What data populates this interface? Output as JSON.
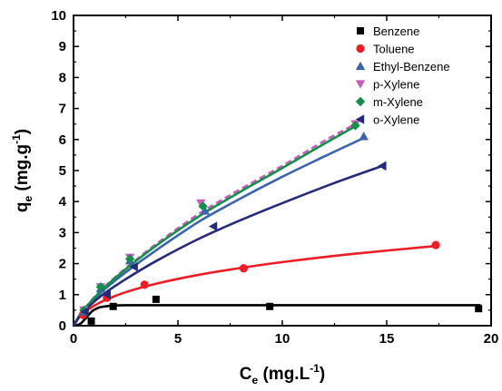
{
  "chart_data": {
    "type": "scatter",
    "title": "",
    "xlabel": {
      "main": "C",
      "sub": "e",
      "rest": " (mg.L",
      "sup": "-1",
      "close": ")"
    },
    "ylabel": {
      "main": "q",
      "sub": "e",
      "rest": " (mg.g",
      "sup": "-1",
      "close": ")"
    },
    "xlim": [
      0,
      20
    ],
    "ylim": [
      0,
      10
    ],
    "xticks": [
      "0",
      "5",
      "10",
      "15",
      "20"
    ],
    "yticks": [
      "0",
      "1",
      "2",
      "3",
      "4",
      "5",
      "6",
      "7",
      "8",
      "9",
      "10"
    ],
    "legend_position": "top-right",
    "grid": false,
    "series": [
      {
        "name": "Benzene",
        "color": "#000000",
        "marker": "square",
        "points": [
          [
            0.85,
            0.15
          ],
          [
            1.9,
            0.62
          ],
          [
            3.95,
            0.85
          ],
          [
            9.4,
            0.62
          ],
          [
            19.4,
            0.55
          ]
        ],
        "fit": [
          [
            0.0,
            0.0
          ],
          [
            0.3,
            0.05
          ],
          [
            0.6,
            0.25
          ],
          [
            0.9,
            0.47
          ],
          [
            1.2,
            0.58
          ],
          [
            1.5,
            0.62
          ],
          [
            1.9,
            0.65
          ],
          [
            2.5,
            0.66
          ],
          [
            4,
            0.66
          ],
          [
            10,
            0.66
          ],
          [
            19.5,
            0.66
          ]
        ],
        "fit_dashed": false
      },
      {
        "name": "Toluene",
        "color": "#ee1c24",
        "marker": "circle",
        "points": [
          [
            0.45,
            0.35
          ],
          [
            1.6,
            0.9
          ],
          [
            3.4,
            1.32
          ],
          [
            8.15,
            1.85
          ],
          [
            17.35,
            2.6
          ]
        ],
        "fit": [
          [
            0,
            0
          ],
          [
            0.25,
            0.25
          ],
          [
            0.5,
            0.42
          ],
          [
            1,
            0.65
          ],
          [
            1.5,
            0.82
          ],
          [
            2.5,
            1.08
          ],
          [
            4,
            1.36
          ],
          [
            6,
            1.64
          ],
          [
            8,
            1.86
          ],
          [
            10,
            2.05
          ],
          [
            12.5,
            2.25
          ],
          [
            15,
            2.42
          ],
          [
            17.4,
            2.57
          ]
        ],
        "fit_dashed": false
      },
      {
        "name": "Ethyl-Benzene",
        "color": "#3b64ad",
        "marker": "triangle-up",
        "points": [
          [
            0.5,
            0.45
          ],
          [
            1.3,
            1.2
          ],
          [
            2.7,
            2.1
          ],
          [
            6.3,
            3.7
          ],
          [
            13.9,
            6.1
          ]
        ],
        "fit": [
          [
            0,
            0
          ],
          [
            0.25,
            0.27
          ],
          [
            0.5,
            0.5
          ],
          [
            1,
            0.85
          ],
          [
            1.5,
            1.18
          ],
          [
            2.5,
            1.72
          ],
          [
            4,
            2.45
          ],
          [
            6,
            3.35
          ],
          [
            8,
            4.1
          ],
          [
            10,
            4.8
          ],
          [
            12,
            5.45
          ],
          [
            13.9,
            6.05
          ]
        ],
        "fit_dashed": false
      },
      {
        "name": "p-Xylene",
        "color": "#c45ec0",
        "marker": "triangle-down",
        "points": [
          [
            0.5,
            0.5
          ],
          [
            1.3,
            1.25
          ],
          [
            2.7,
            2.2
          ],
          [
            6.1,
            3.95
          ],
          [
            13.5,
            6.5
          ]
        ],
        "fit": [
          [
            0,
            0
          ],
          [
            0.25,
            0.3
          ],
          [
            0.5,
            0.53
          ],
          [
            1,
            0.92
          ],
          [
            1.5,
            1.26
          ],
          [
            2.5,
            1.85
          ],
          [
            4,
            2.65
          ],
          [
            6,
            3.6
          ],
          [
            8,
            4.4
          ],
          [
            10,
            5.15
          ],
          [
            12,
            5.95
          ],
          [
            13.5,
            6.5
          ]
        ],
        "fit_dashed": true
      },
      {
        "name": "m-Xylene",
        "color": "#129048",
        "marker": "diamond",
        "points": [
          [
            0.5,
            0.5
          ],
          [
            1.3,
            1.25
          ],
          [
            2.7,
            2.15
          ],
          [
            6.2,
            3.85
          ],
          [
            13.5,
            6.45
          ]
        ],
        "fit": [
          [
            0,
            0
          ],
          [
            0.25,
            0.29
          ],
          [
            0.5,
            0.52
          ],
          [
            1,
            0.9
          ],
          [
            1.5,
            1.24
          ],
          [
            2.5,
            1.82
          ],
          [
            4,
            2.6
          ],
          [
            6,
            3.52
          ],
          [
            8,
            4.32
          ],
          [
            10,
            5.08
          ],
          [
            12,
            5.86
          ],
          [
            13.5,
            6.43
          ]
        ],
        "fit_dashed": false
      },
      {
        "name": "o-Xylene",
        "color": "#262a7b",
        "marker": "triangle-left",
        "points": [
          [
            0.55,
            0.45
          ],
          [
            1.6,
            1.0
          ],
          [
            2.9,
            1.9
          ],
          [
            6.7,
            3.2
          ],
          [
            14.8,
            5.15
          ]
        ],
        "fit": [
          [
            0,
            0
          ],
          [
            0.25,
            0.26
          ],
          [
            0.5,
            0.46
          ],
          [
            1,
            0.78
          ],
          [
            1.5,
            1.05
          ],
          [
            2.5,
            1.5
          ],
          [
            4,
            2.1
          ],
          [
            6,
            2.8
          ],
          [
            8,
            3.4
          ],
          [
            10,
            3.95
          ],
          [
            12.5,
            4.6
          ],
          [
            14.8,
            5.15
          ]
        ],
        "fit_dashed": false
      }
    ]
  }
}
